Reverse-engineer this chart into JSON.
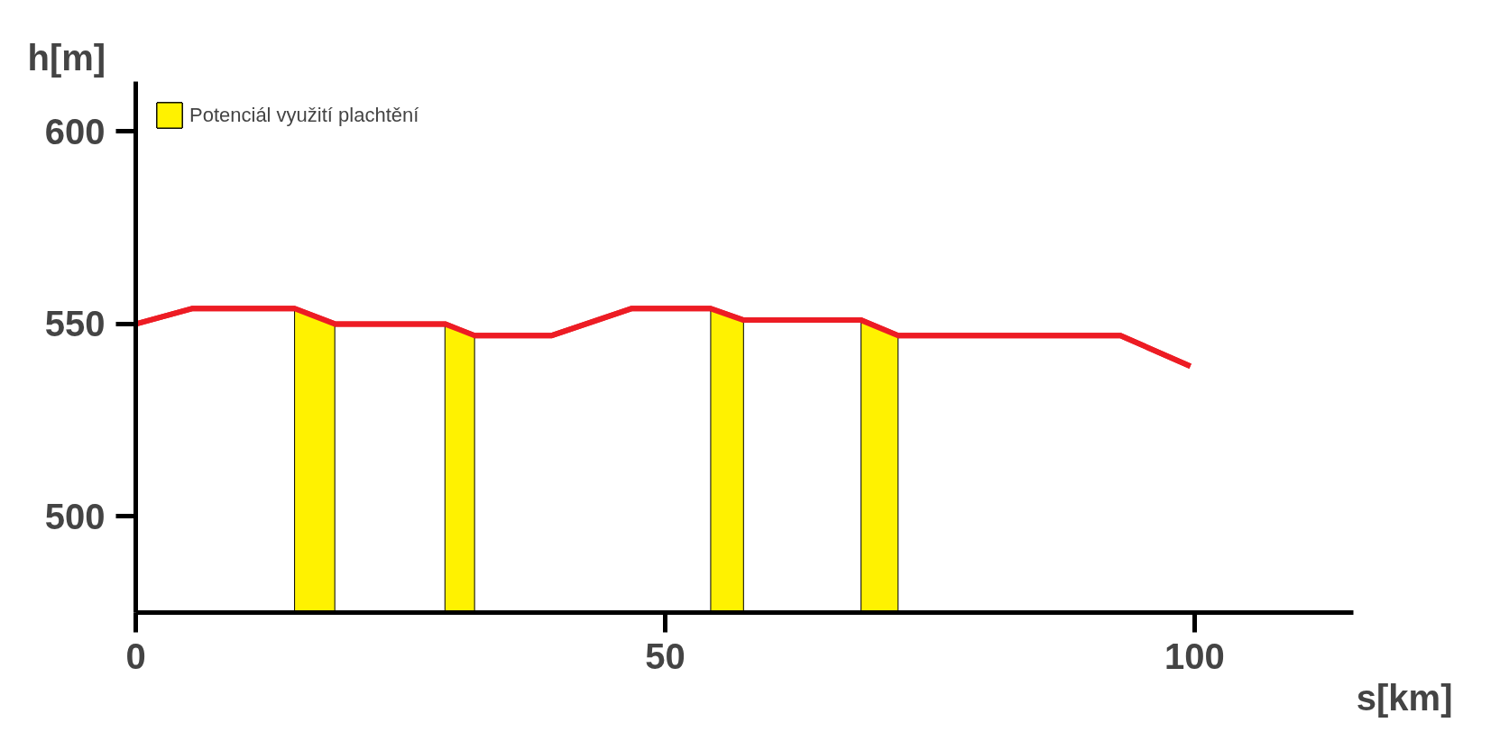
{
  "chart_data": {
    "type": "line",
    "xlabel": "s[km]",
    "ylabel": "h[m]",
    "series": [
      {
        "color": "#ed1c24",
        "x": [
          0,
          5.3,
          15,
          18.8,
          29.2,
          32,
          39.3,
          46.8,
          54.3,
          57.4,
          68.5,
          72,
          93,
          99.6
        ],
        "values": [
          550,
          554,
          554,
          550,
          550,
          547,
          547,
          554,
          554,
          551,
          551,
          547,
          547,
          539
        ]
      },
      {
        "type": "area",
        "name": "Potenciál využití plachtění",
        "color": "#fff200",
        "x": [
          15,
          18.8,
          24,
          29.2,
          32,
          43,
          54.3,
          57.4,
          63,
          68.5,
          72
        ],
        "values": [
          554,
          550,
          null,
          550,
          547,
          null,
          554,
          551,
          null,
          551,
          547
        ]
      }
    ],
    "xlim": [
      0,
      115
    ],
    "ylim": [
      475,
      613
    ],
    "xticks": [
      0,
      50,
      100
    ],
    "yticks": [
      500,
      550,
      600
    ],
    "grid": false,
    "legend": "top left",
    "marker": "none",
    "line_style": "solid"
  }
}
